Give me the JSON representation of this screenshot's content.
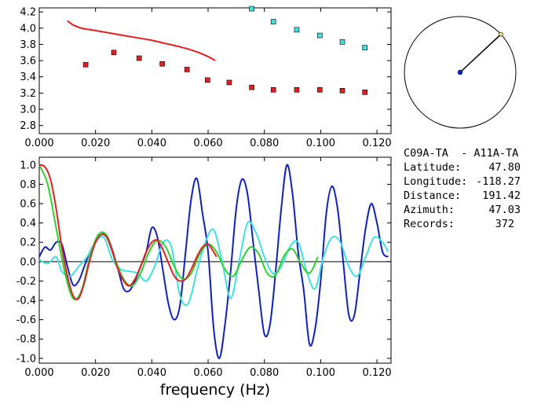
{
  "chart_data": [
    {
      "type": "scatter",
      "panel": "dispersion",
      "xlim": [
        0.0,
        0.125
      ],
      "ylim": [
        2.7,
        4.25
      ],
      "xticks": [
        "0.000",
        "0.020",
        "0.040",
        "0.060",
        "0.080",
        "0.100",
        "0.120"
      ],
      "xtick_values": [
        0.0,
        0.02,
        0.04,
        0.06,
        0.08,
        0.1,
        0.12
      ],
      "yticks": [
        "2.8",
        "3.0",
        "3.2",
        "3.4",
        "3.6",
        "3.8",
        "4.0",
        "4.2"
      ],
      "ytick_values": [
        2.8,
        3.0,
        3.2,
        3.4,
        3.6,
        3.8,
        4.0,
        4.2
      ],
      "series": [
        {
          "type": "scatter",
          "color": "#e02020",
          "x": [
            0.0165,
            0.0265,
            0.0355,
            0.0437,
            0.0525,
            0.0598,
            0.0675,
            0.0755,
            0.0832,
            0.0915,
            0.0997,
            0.1077,
            0.1157
          ],
          "y": [
            3.55,
            3.7,
            3.63,
            3.56,
            3.49,
            3.36,
            3.33,
            3.27,
            3.24,
            3.24,
            3.24,
            3.23,
            3.21
          ]
        },
        {
          "type": "scatter",
          "color": "#40e0e0",
          "x": [
            0.0755,
            0.0832,
            0.0915,
            0.0997,
            0.1077,
            0.1157
          ],
          "y": [
            4.24,
            4.08,
            3.98,
            3.91,
            3.83,
            3.76
          ]
        },
        {
          "type": "line",
          "color": "#e02020",
          "x": [
            0.01,
            0.012,
            0.015,
            0.02,
            0.025,
            0.03,
            0.035,
            0.04,
            0.045,
            0.05,
            0.055,
            0.06,
            0.0625
          ],
          "y": [
            4.09,
            4.04,
            4.0,
            3.97,
            3.94,
            3.91,
            3.88,
            3.85,
            3.81,
            3.77,
            3.72,
            3.65,
            3.6
          ]
        }
      ]
    },
    {
      "type": "line",
      "panel": "coherency",
      "xlabel": "frequency (Hz)",
      "xlim": [
        0.0,
        0.125
      ],
      "ylim": [
        -1.05,
        1.08
      ],
      "xticks": [
        "0.000",
        "0.020",
        "0.040",
        "0.060",
        "0.080",
        "0.100",
        "0.120"
      ],
      "xtick_values": [
        0.0,
        0.02,
        0.04,
        0.06,
        0.08,
        0.1,
        0.12
      ],
      "yticks": [
        "1.0",
        "0.8",
        "0.6",
        "0.4",
        "0.2",
        "0.0",
        "-0.2",
        "-0.4",
        "-0.6",
        "-0.8",
        "-1.0"
      ],
      "ytick_values": [
        1.0,
        0.8,
        0.6,
        0.4,
        0.2,
        0.0,
        -0.2,
        -0.4,
        -0.6,
        -0.8,
        -1.0
      ],
      "zero_line": true,
      "series": [
        {
          "color": "#1020c0",
          "x": [
            0.0,
            0.002,
            0.004,
            0.006,
            0.008,
            0.01,
            0.012,
            0.014,
            0.016,
            0.018,
            0.02,
            0.022,
            0.024,
            0.026,
            0.028,
            0.03,
            0.032,
            0.034,
            0.036,
            0.038,
            0.04,
            0.042,
            0.044,
            0.046,
            0.048,
            0.05,
            0.052,
            0.054,
            0.056,
            0.058,
            0.06,
            0.062,
            0.064,
            0.066,
            0.068,
            0.07,
            0.072,
            0.074,
            0.076,
            0.078,
            0.08,
            0.082,
            0.084,
            0.086,
            0.088,
            0.09,
            0.092,
            0.094,
            0.096,
            0.098,
            0.1,
            0.102,
            0.104,
            0.106,
            0.108,
            0.11,
            0.112,
            0.114,
            0.116,
            0.118,
            0.12,
            0.122,
            0.124
          ],
          "y": [
            0.05,
            0.15,
            0.12,
            0.2,
            0.18,
            -0.05,
            -0.24,
            -0.2,
            -0.05,
            0.1,
            0.2,
            0.28,
            0.27,
            0.12,
            -0.08,
            -0.28,
            -0.3,
            -0.2,
            -0.05,
            0.1,
            0.35,
            0.25,
            -0.1,
            -0.45,
            -0.6,
            -0.45,
            0.1,
            0.65,
            0.86,
            0.5,
            0.1,
            -0.7,
            -1.0,
            -0.65,
            -0.1,
            0.55,
            0.85,
            0.7,
            0.2,
            -0.3,
            -0.75,
            -0.65,
            -0.1,
            0.55,
            1.0,
            0.7,
            0.1,
            -0.3,
            -0.85,
            -0.7,
            -0.2,
            0.5,
            0.78,
            0.55,
            0.0,
            -0.55,
            -0.55,
            -0.1,
            0.35,
            0.6,
            0.4,
            0.1,
            0.05
          ]
        },
        {
          "color": "#40e0e0",
          "x": [
            0.0,
            0.003,
            0.006,
            0.008,
            0.011,
            0.014,
            0.017,
            0.02,
            0.023,
            0.026,
            0.029,
            0.032,
            0.035,
            0.038,
            0.041,
            0.044,
            0.047,
            0.05,
            0.053,
            0.056,
            0.059,
            0.062,
            0.065,
            0.068,
            0.071,
            0.074,
            0.077,
            0.08,
            0.083,
            0.086,
            0.089,
            0.092,
            0.095,
            0.098,
            0.101,
            0.104,
            0.107,
            0.11,
            0.113,
            0.116,
            0.119,
            0.122,
            0.124
          ],
          "y": [
            0.02,
            -0.02,
            0.05,
            -0.1,
            -0.15,
            -0.05,
            0.05,
            0.2,
            0.25,
            0.02,
            -0.08,
            -0.1,
            -0.12,
            -0.2,
            -0.05,
            0.2,
            0.15,
            -0.35,
            -0.43,
            -0.1,
            0.2,
            0.33,
            0.0,
            -0.38,
            0.0,
            0.4,
            0.3,
            0.05,
            -0.12,
            -0.05,
            0.15,
            0.2,
            -0.1,
            -0.28,
            0.05,
            0.25,
            0.2,
            -0.05,
            -0.15,
            0.05,
            0.25,
            0.2,
            0.1
          ]
        },
        {
          "color": "#30d030",
          "x": [
            0.0,
            0.003,
            0.006,
            0.009,
            0.012,
            0.015,
            0.018,
            0.021,
            0.024,
            0.027,
            0.03,
            0.033,
            0.036,
            0.039,
            0.042,
            0.045,
            0.048,
            0.051,
            0.054,
            0.057,
            0.06,
            0.063,
            0.066,
            0.069,
            0.072,
            0.075,
            0.078,
            0.081,
            0.084,
            0.087,
            0.09,
            0.093,
            0.096,
            0.099
          ],
          "y": [
            1.0,
            0.8,
            0.35,
            -0.1,
            -0.38,
            -0.3,
            0.05,
            0.28,
            0.27,
            0.02,
            -0.18,
            -0.25,
            -0.12,
            0.1,
            0.22,
            0.15,
            -0.05,
            -0.18,
            -0.12,
            0.08,
            0.18,
            0.1,
            -0.08,
            -0.15,
            0.02,
            0.15,
            0.08,
            -0.12,
            -0.14,
            0.06,
            0.13,
            -0.02,
            -0.12,
            0.05
          ]
        },
        {
          "color": "#e02020",
          "x": [
            0.0,
            0.002,
            0.004,
            0.006,
            0.008,
            0.01,
            0.012,
            0.014,
            0.016,
            0.018,
            0.02,
            0.022,
            0.024,
            0.026,
            0.028,
            0.03,
            0.032,
            0.034,
            0.036,
            0.038,
            0.04,
            0.042,
            0.044,
            0.046,
            0.048,
            0.05,
            0.052,
            0.054,
            0.056,
            0.058,
            0.06,
            0.062,
            0.063
          ],
          "y": [
            1.0,
            0.98,
            0.85,
            0.55,
            0.15,
            -0.15,
            -0.35,
            -0.38,
            -0.22,
            0.02,
            0.2,
            0.28,
            0.25,
            0.1,
            -0.08,
            -0.2,
            -0.25,
            -0.18,
            -0.05,
            0.1,
            0.2,
            0.22,
            0.12,
            -0.02,
            -0.15,
            -0.2,
            -0.18,
            -0.08,
            0.05,
            0.15,
            0.18,
            0.1,
            0.05
          ]
        }
      ]
    }
  ],
  "map_inset": {
    "azimuth_deg": 47.03,
    "ring_color": "#000000",
    "center_dot_color": "#1020c0",
    "end_dot_color": "#f0f060"
  },
  "info": {
    "station_pair": "C09A-TA  - A11A-TA",
    "rows": [
      {
        "label": "Latitude:",
        "value": "47.80"
      },
      {
        "label": "Longitude:",
        "value": "-118.27"
      },
      {
        "label": "Distance:",
        "value": "191.42"
      },
      {
        "label": "Azimuth:",
        "value": "47.03"
      },
      {
        "label": "Records:",
        "value": "372"
      }
    ]
  }
}
